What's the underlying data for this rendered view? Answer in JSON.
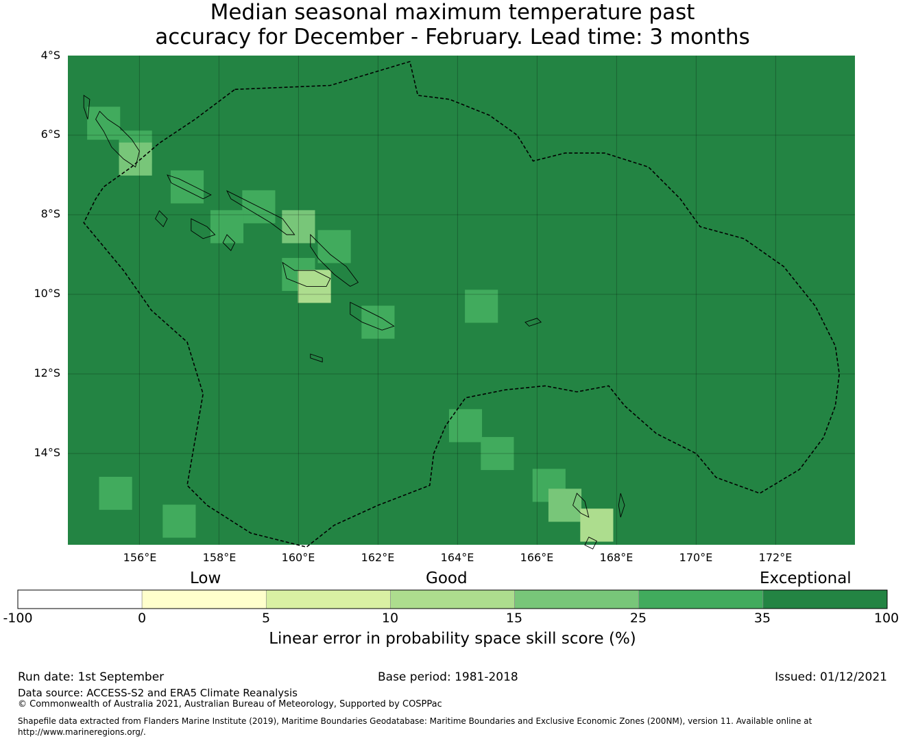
{
  "title": {
    "line1": "Median seasonal maximum temperature past",
    "line2": "accuracy for December - February. Lead time: 3 months"
  },
  "map": {
    "lat_labels": [
      "4°S",
      "6°S",
      "8°S",
      "10°S",
      "12°S",
      "14°S"
    ],
    "lon_labels": [
      "156°E",
      "158°E",
      "160°E",
      "162°E",
      "164°E",
      "166°E",
      "168°E",
      "170°E",
      "172°E"
    ],
    "base_color": "#238443",
    "region": "Solomon Islands EEZ",
    "cells": [
      {
        "lon": 155.1,
        "lat": -5.7,
        "category": "25-35"
      },
      {
        "lon": 155.9,
        "lat": -6.3,
        "category": "25-35"
      },
      {
        "lon": 155.9,
        "lat": -6.6,
        "category": "15-25"
      },
      {
        "lon": 157.2,
        "lat": -7.3,
        "category": "25-35"
      },
      {
        "lon": 159.0,
        "lat": -7.8,
        "category": "25-35"
      },
      {
        "lon": 158.2,
        "lat": -8.3,
        "category": "25-35"
      },
      {
        "lon": 160.0,
        "lat": -8.3,
        "category": "15-25"
      },
      {
        "lon": 160.9,
        "lat": -8.8,
        "category": "25-35"
      },
      {
        "lon": 160.0,
        "lat": -9.5,
        "category": "25-35"
      },
      {
        "lon": 160.4,
        "lat": -9.8,
        "category": "10-15"
      },
      {
        "lon": 162.0,
        "lat": -10.7,
        "category": "25-35"
      },
      {
        "lon": 164.6,
        "lat": -10.3,
        "category": "25-35"
      },
      {
        "lon": 164.2,
        "lat": -13.3,
        "category": "25-35"
      },
      {
        "lon": 165.0,
        "lat": -14.0,
        "category": "25-35"
      },
      {
        "lon": 166.3,
        "lat": -14.8,
        "category": "25-35"
      },
      {
        "lon": 166.7,
        "lat": -15.3,
        "category": "15-25"
      },
      {
        "lon": 167.5,
        "lat": -15.8,
        "category": "10-15"
      },
      {
        "lon": 155.4,
        "lat": -15.0,
        "category": "25-35"
      },
      {
        "lon": 157.0,
        "lat": -15.7,
        "category": "25-35"
      }
    ]
  },
  "colorbar": {
    "category_labels": [
      "Low",
      "Good",
      "Exceptional"
    ],
    "ticks": [
      "-100",
      "0",
      "5",
      "10",
      "15",
      "25",
      "35",
      "100"
    ],
    "colors": [
      "#ffffff",
      "#ffffcc",
      "#d9f0a3",
      "#addd8e",
      "#78c679",
      "#41ab5d",
      "#238443"
    ],
    "title": "Linear error in probability space skill score (%)"
  },
  "footer": {
    "run_date": "Run date: 1st September",
    "base_period": "Base period: 1981-2018",
    "issued": "Issued: 01/12/2021",
    "data_source": "Data source: ACCESS-S2 and ERA5 Climate Reanalysis",
    "copyright": "© Commonwealth of Australia 2021, Australian Bureau of Meteorology, Supported by COSPPac",
    "shapefile_line1": "Shapefile data extracted from Flanders Marine Institute (2019), Maritime Boundaries Geodatabase: Maritime Boundaries and Exclusive Economic Zones (200NM), version 11. Available online at",
    "shapefile_line2": "http://www.marineregions.org/."
  }
}
